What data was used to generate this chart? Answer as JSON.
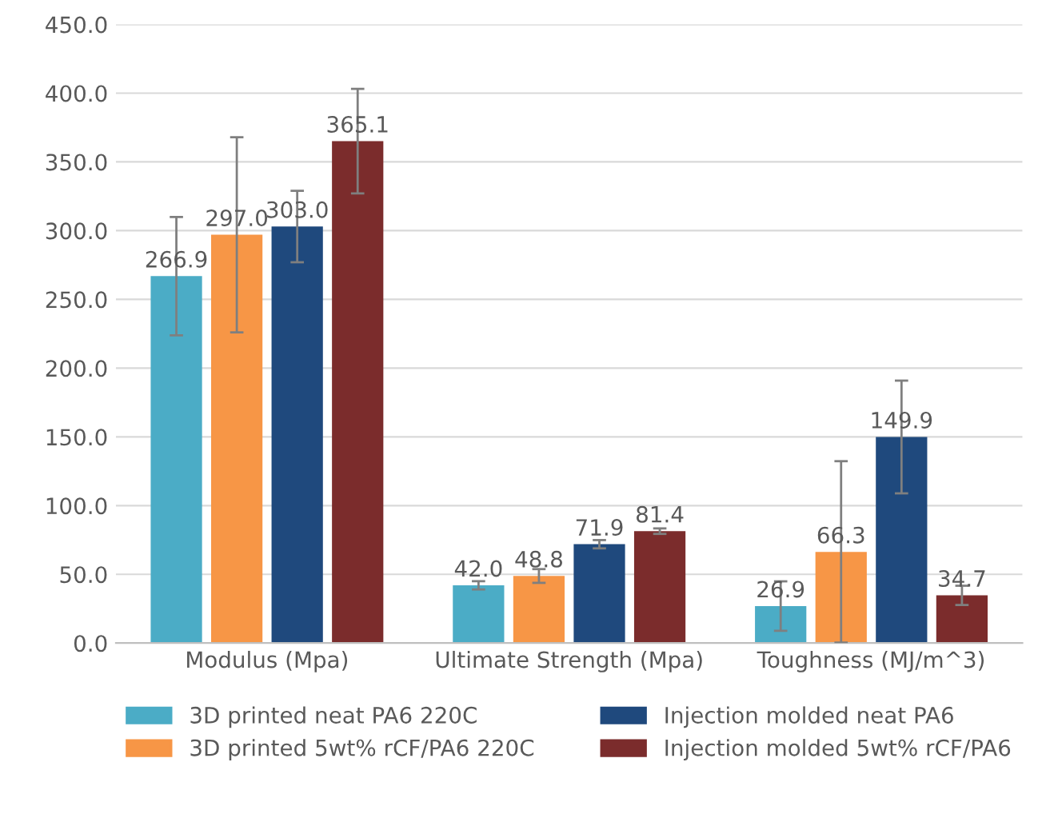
{
  "chart_data": {
    "type": "bar",
    "categories": [
      "Modulus (Mpa)",
      "Ultimate Strength (Mpa)",
      "Toughness (MJ/m^3)"
    ],
    "series": [
      {
        "name": "3D printed neat PA6 220C",
        "color": "#4bacc6",
        "values": [
          266.9,
          42.0,
          26.9
        ],
        "errors": [
          43,
          3,
          18
        ],
        "value_labels": [
          "266.9",
          "42.0",
          "26.9"
        ]
      },
      {
        "name": "3D printed 5wt% rCF/PA6 220C",
        "color": "#f79646",
        "values": [
          297.0,
          48.8,
          66.3
        ],
        "errors": [
          71,
          5,
          66
        ],
        "value_labels": [
          "297.0",
          "48.8",
          "66.3"
        ]
      },
      {
        "name": "Injection molded neat PA6",
        "color": "#1f497d",
        "values": [
          303.0,
          71.9,
          149.9
        ],
        "errors": [
          26,
          3,
          41
        ],
        "value_labels": [
          "303.0",
          "71.9",
          "149.9"
        ]
      },
      {
        "name": "Injection molded 5wt% rCF/PA6",
        "color": "#7b2c2c",
        "values": [
          365.1,
          81.4,
          34.7
        ],
        "errors": [
          38,
          2,
          7
        ],
        "value_labels": [
          "365.1",
          "81.4",
          "34.7"
        ]
      }
    ],
    "ylim": [
      0,
      450
    ],
    "yticks": [
      {
        "value": 0,
        "label": "0.0"
      },
      {
        "value": 50,
        "label": "50.0"
      },
      {
        "value": 100,
        "label": "100.0"
      },
      {
        "value": 150,
        "label": "150.0"
      },
      {
        "value": 200,
        "label": "200.0"
      },
      {
        "value": 250,
        "label": "250.0"
      },
      {
        "value": 300,
        "label": "300.0"
      },
      {
        "value": 350,
        "label": "350.0"
      },
      {
        "value": 400,
        "label": "400.0"
      },
      {
        "value": 450,
        "label": "450.0"
      }
    ],
    "grid": "y",
    "legend": "bottom"
  }
}
